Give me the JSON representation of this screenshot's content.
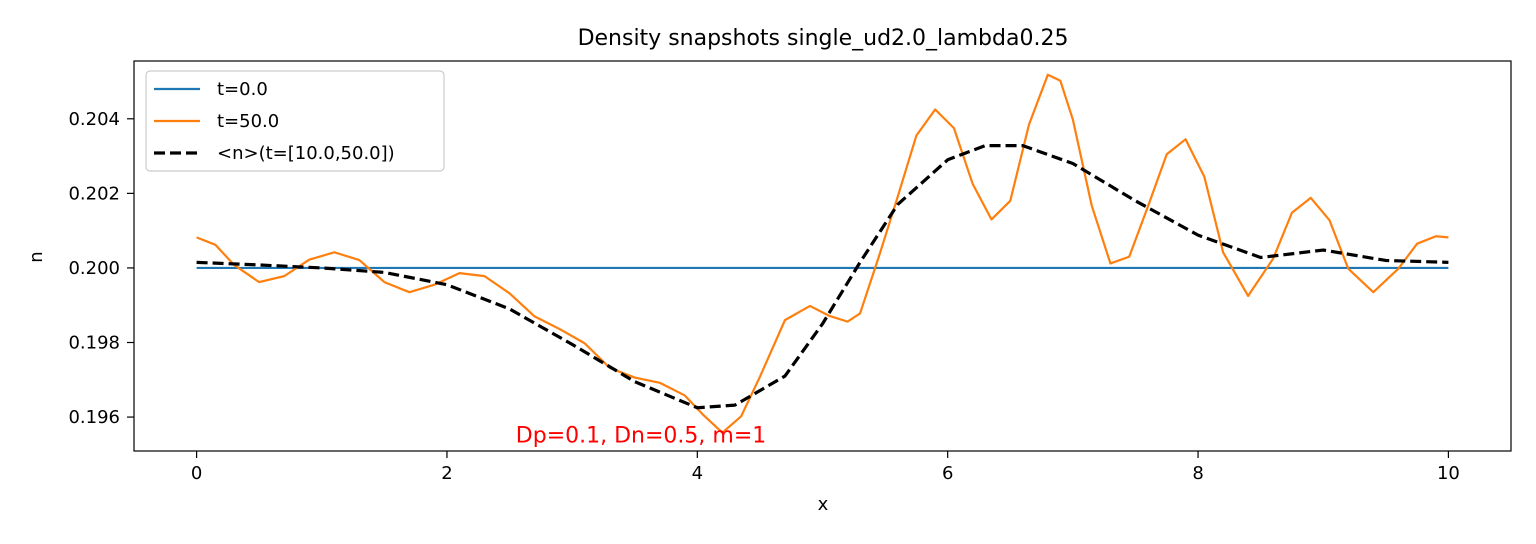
{
  "chart_data": {
    "type": "line",
    "title": "Density snapshots  single_ud2.0_lambda0.25",
    "xlabel": "x",
    "ylabel": "n",
    "xlim": [
      -0.5,
      10.5
    ],
    "ylim": [
      0.19509,
      0.20555
    ],
    "x_ticks": [
      0,
      2,
      4,
      6,
      8,
      10
    ],
    "x_tick_labels": [
      "0",
      "2",
      "4",
      "6",
      "8",
      "10"
    ],
    "y_ticks": [
      0.196,
      0.198,
      0.2,
      0.202,
      0.204
    ],
    "y_tick_labels": [
      "0.196",
      "0.198",
      "0.200",
      "0.202",
      "0.204"
    ],
    "grid": false,
    "legend_position": "top-left",
    "annotation": {
      "text": "Dp=0.1, Dn=0.5, m=1",
      "color": "#ff0000",
      "x": 2.55,
      "y": 0.1955
    },
    "series": [
      {
        "name": "t=0.0",
        "color": "#1f77b4",
        "style": "solid",
        "x": [
          0,
          10
        ],
        "y": [
          0.2,
          0.2
        ]
      },
      {
        "name": "t=50.0",
        "color": "#ff7f0e",
        "style": "solid",
        "x": [
          0.0,
          0.15,
          0.3,
          0.5,
          0.7,
          0.9,
          1.1,
          1.3,
          1.5,
          1.7,
          1.9,
          2.1,
          2.3,
          2.5,
          2.7,
          2.9,
          3.1,
          3.3,
          3.5,
          3.7,
          3.9,
          4.05,
          4.2,
          4.35,
          4.5,
          4.7,
          4.9,
          5.05,
          5.2,
          5.3,
          5.45,
          5.6,
          5.75,
          5.9,
          6.05,
          6.2,
          6.35,
          6.5,
          6.65,
          6.8,
          6.9,
          7.0,
          7.15,
          7.3,
          7.45,
          7.6,
          7.75,
          7.9,
          8.05,
          8.2,
          8.4,
          8.6,
          8.75,
          8.9,
          9.05,
          9.2,
          9.4,
          9.6,
          9.75,
          9.9,
          10.0
        ],
        "y": [
          0.20082,
          0.20062,
          0.20008,
          0.19962,
          0.19978,
          0.20022,
          0.20042,
          0.20021,
          0.19962,
          0.19935,
          0.19955,
          0.19986,
          0.19978,
          0.19932,
          0.1987,
          0.19836,
          0.19798,
          0.19732,
          0.19706,
          0.19692,
          0.19658,
          0.19605,
          0.19558,
          0.19602,
          0.19708,
          0.1986,
          0.19898,
          0.19872,
          0.19856,
          0.19878,
          0.2003,
          0.2019,
          0.20355,
          0.20425,
          0.20375,
          0.20225,
          0.2013,
          0.2018,
          0.20385,
          0.20518,
          0.20502,
          0.20398,
          0.20168,
          0.20012,
          0.2003,
          0.20165,
          0.20305,
          0.20345,
          0.20245,
          0.20042,
          0.19925,
          0.20025,
          0.20148,
          0.20188,
          0.20128,
          0.19998,
          0.19935,
          0.19998,
          0.20065,
          0.20085,
          0.20082
        ]
      },
      {
        "name": "<n>(t=[10.0,50.0])",
        "color": "#000000",
        "style": "dashed",
        "x": [
          0.0,
          0.5,
          1.0,
          1.5,
          2.0,
          2.5,
          3.0,
          3.5,
          4.0,
          4.3,
          4.7,
          5.0,
          5.3,
          5.6,
          6.0,
          6.3,
          6.6,
          7.0,
          7.5,
          8.0,
          8.5,
          9.0,
          9.5,
          10.0
        ],
        "y": [
          0.20015,
          0.20008,
          0.2,
          0.19988,
          0.19955,
          0.1989,
          0.19795,
          0.19695,
          0.19625,
          0.19632,
          0.1971,
          0.1985,
          0.20015,
          0.2017,
          0.2029,
          0.20328,
          0.20328,
          0.2028,
          0.2018,
          0.20088,
          0.20028,
          0.20048,
          0.2002,
          0.20015
        ]
      }
    ]
  }
}
